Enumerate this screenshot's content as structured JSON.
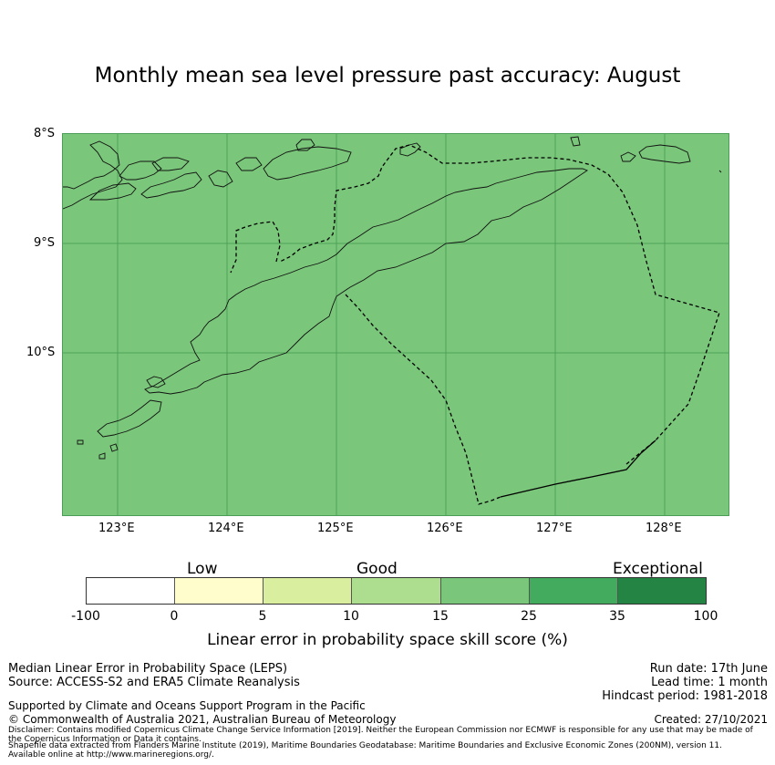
{
  "title": "Monthly mean sea level pressure past accuracy: August",
  "map": {
    "background_color": "#7ac67a",
    "gridline_color": "#4b9d57",
    "lat_labels": [
      "8°S",
      "9°S",
      "10°S"
    ],
    "lon_labels": [
      "123°E",
      "124°E",
      "125°E",
      "126°E",
      "127°E",
      "128°E"
    ],
    "lon_range": [
      122.5,
      128.6
    ],
    "lat_range": [
      -8.0,
      -11.5
    ]
  },
  "legend": {
    "categories": [
      "Low",
      "Good",
      "Exceptional"
    ],
    "ticks": [
      "-100",
      "0",
      "5",
      "10",
      "15",
      "25",
      "35",
      "100"
    ],
    "colors": [
      "#ffffff",
      "#fffdcc",
      "#d9ee9f",
      "#addd8e",
      "#7ac67a",
      "#42ab5d",
      "#238444"
    ],
    "title": "Linear error in probability space skill score (%)"
  },
  "footer": {
    "left_line1": "Median Linear Error in Probability Space (LEPS)",
    "left_line2": "Source: ACCESS-S2 and ERA5 Climate Reanalysis",
    "supported": "Supported by Climate and Oceans Support Program in the Pacific",
    "copyright": "© Commonwealth of Australia 2021, Australian Bureau of Meteorology",
    "disclaimer1": "Disclaimer: Contains modified Copernicus Climate Change Service Information [2019]. Neither the European Commission nor ECMWF is responsible for any use that may be made of",
    "disclaimer2": "the Copernicus Information or Data it contains.",
    "shapefile1": "Shapefile data extracted from Flanders Marine Institute (2019), Maritime Boundaries Geodatabase: Maritime Boundaries and Exclusive Economic Zones (200NM), version 11.",
    "shapefile2": "Available online at http://www.marineregions.org/.",
    "run_date": "Run date: 17th June",
    "lead_time": "Lead time: 1 month",
    "hindcast": "Hindcast period: 1981-2018",
    "created": "Created: 27/10/2021"
  }
}
